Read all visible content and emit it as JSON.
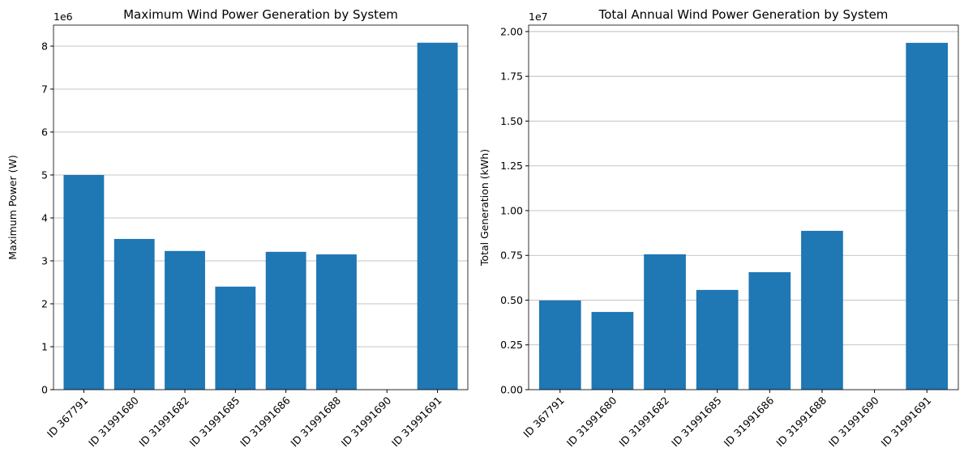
{
  "chart_data": [
    {
      "type": "bar",
      "title": "Maximum Wind Power Generation by System",
      "ylabel": "Maximum Power (W)",
      "y_offset_label": "1e6",
      "categories": [
        "ID 367791",
        "ID 31991680",
        "ID 31991682",
        "ID 31991685",
        "ID 31991686",
        "ID 31991688",
        "ID 31991690",
        "ID 31991691"
      ],
      "values": [
        5.0,
        3.51,
        3.23,
        2.4,
        3.21,
        3.15,
        0,
        8.08
      ],
      "color": "#1f77b4",
      "ylim": [
        0,
        8.49
      ],
      "yticks": [
        0,
        1,
        2,
        3,
        4,
        5,
        6,
        7,
        8
      ],
      "grid": "y"
    },
    {
      "type": "bar",
      "title": "Total Annual Wind Power Generation by System",
      "ylabel": "Total Generation (kWh)",
      "y_offset_label": "1e7",
      "categories": [
        "ID 367791",
        "ID 31991680",
        "ID 31991682",
        "ID 31991685",
        "ID 31991686",
        "ID 31991688",
        "ID 31991690",
        "ID 31991691"
      ],
      "values": [
        0.498,
        0.434,
        0.756,
        0.557,
        0.656,
        0.887,
        0,
        1.937
      ],
      "color": "#1f77b4",
      "ylim": [
        0,
        2.036
      ],
      "yticks": [
        {
          "value": 0,
          "label": "0.00"
        },
        {
          "value": 0.25,
          "label": "0.25"
        },
        {
          "value": 0.5,
          "label": "0.50"
        },
        {
          "value": 0.75,
          "label": "0.75"
        },
        {
          "value": 1,
          "label": "1.00"
        },
        {
          "value": 1.25,
          "label": "1.25"
        },
        {
          "value": 1.5,
          "label": "1.50"
        },
        {
          "value": 1.75,
          "label": "1.75"
        },
        {
          "value": 2,
          "label": "2.00"
        }
      ],
      "grid": "y"
    }
  ]
}
